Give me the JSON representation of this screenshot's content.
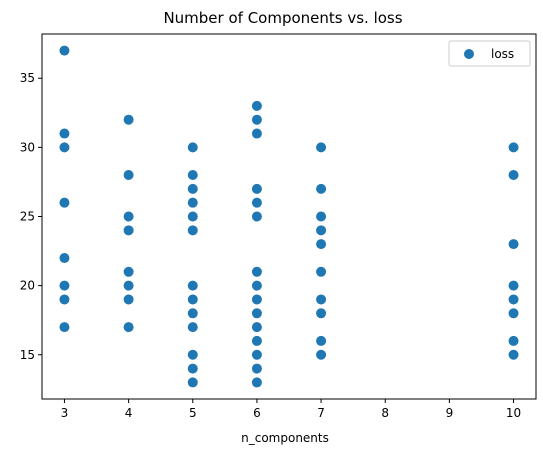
{
  "chart_data": {
    "type": "scatter",
    "title": "Number of Components vs. loss",
    "xlabel": "n_components",
    "ylabel": "",
    "xlim": [
      2.65,
      10.35
    ],
    "ylim": [
      11.8,
      38.2
    ],
    "xticks": [
      "3",
      "4",
      "5",
      "6",
      "7",
      "8",
      "9",
      "10"
    ],
    "yticks": [
      "15",
      "20",
      "25",
      "30",
      "35"
    ],
    "grid": false,
    "legend_position": "top-right",
    "series": [
      {
        "name": "loss",
        "color": "#1f77b4",
        "points": [
          [
            3,
            37
          ],
          [
            3,
            31
          ],
          [
            3,
            30
          ],
          [
            3,
            26
          ],
          [
            3,
            22
          ],
          [
            3,
            20
          ],
          [
            3,
            19
          ],
          [
            3,
            17
          ],
          [
            4,
            32
          ],
          [
            4,
            28
          ],
          [
            4,
            25
          ],
          [
            4,
            24
          ],
          [
            4,
            21
          ],
          [
            4,
            20
          ],
          [
            4,
            19
          ],
          [
            4,
            17
          ],
          [
            5,
            30
          ],
          [
            5,
            28
          ],
          [
            5,
            27
          ],
          [
            5,
            26
          ],
          [
            5,
            25
          ],
          [
            5,
            24
          ],
          [
            5,
            20
          ],
          [
            5,
            19
          ],
          [
            5,
            18
          ],
          [
            5,
            17
          ],
          [
            5,
            15
          ],
          [
            5,
            14
          ],
          [
            5,
            13
          ],
          [
            6,
            33
          ],
          [
            6,
            32
          ],
          [
            6,
            31
          ],
          [
            6,
            27
          ],
          [
            6,
            26
          ],
          [
            6,
            25
          ],
          [
            6,
            21
          ],
          [
            6,
            20
          ],
          [
            6,
            19
          ],
          [
            6,
            18
          ],
          [
            6,
            17
          ],
          [
            6,
            16
          ],
          [
            6,
            15
          ],
          [
            6,
            14
          ],
          [
            6,
            13
          ],
          [
            7,
            30
          ],
          [
            7,
            27
          ],
          [
            7,
            25
          ],
          [
            7,
            24
          ],
          [
            7,
            23
          ],
          [
            7,
            21
          ],
          [
            7,
            19
          ],
          [
            7,
            18
          ],
          [
            7,
            16
          ],
          [
            7,
            15
          ],
          [
            10,
            30
          ],
          [
            10,
            28
          ],
          [
            10,
            23
          ],
          [
            10,
            20
          ],
          [
            10,
            19
          ],
          [
            10,
            18
          ],
          [
            10,
            16
          ],
          [
            10,
            15
          ]
        ]
      }
    ]
  }
}
